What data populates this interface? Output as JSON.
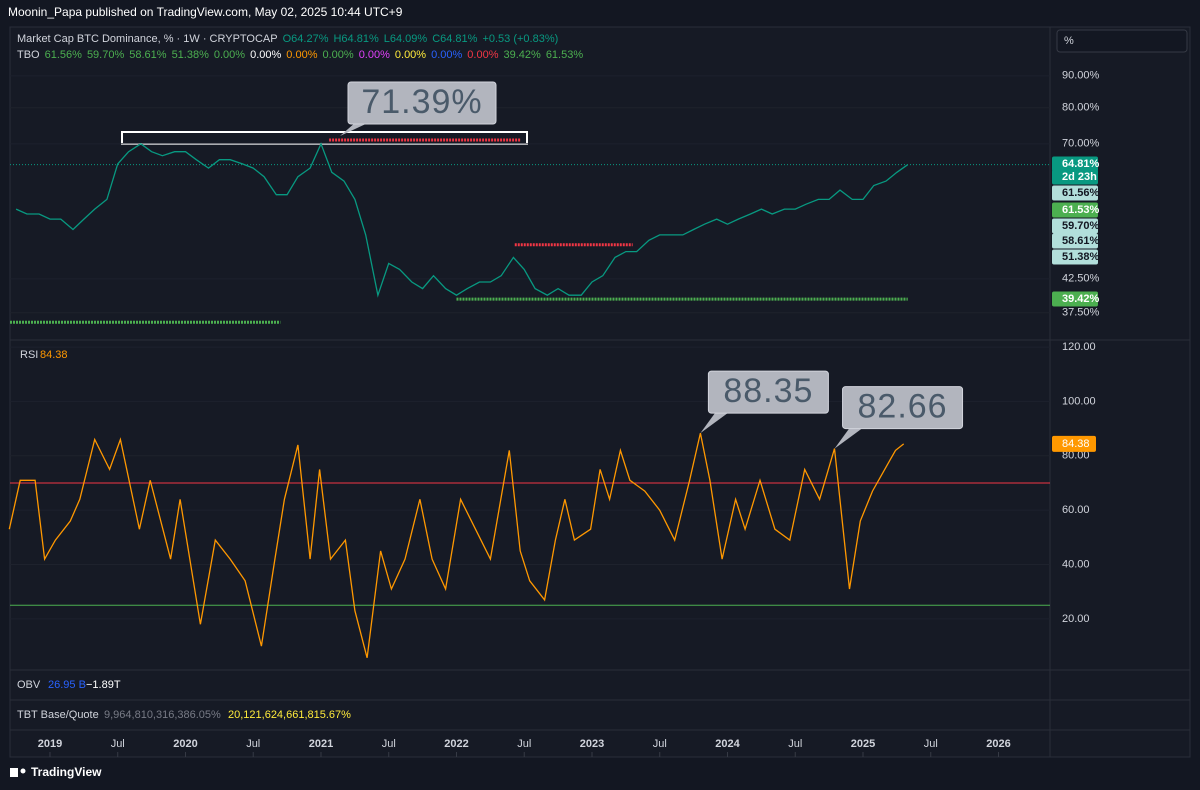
{
  "header": {
    "text": "Moonin_Papa published on TradingView.com, May 02, 2025 10:44 UTC+9"
  },
  "scale_box": "%",
  "chart_data": [
    {
      "type": "line",
      "legend": [
        {
          "text": "Market Cap BTC Dominance, % · 1W · CRYPTOCAP",
          "color": "#d1d4dc"
        },
        {
          "text": "O64.27%",
          "color": "#089981"
        },
        {
          "text": "H64.81%",
          "color": "#089981"
        },
        {
          "text": "L64.09%",
          "color": "#089981"
        },
        {
          "text": "C64.81%",
          "color": "#089981"
        },
        {
          "text": "+0.53 (+0.83%)",
          "color": "#089981"
        }
      ],
      "indicator_legend": {
        "name": "TBO",
        "items": [
          {
            "text": "61.56%",
            "color": "#4caf50"
          },
          {
            "text": "59.70%",
            "color": "#4caf50"
          },
          {
            "text": "58.61%",
            "color": "#4caf50"
          },
          {
            "text": "51.38%",
            "color": "#4caf50"
          },
          {
            "text": "0.00%",
            "color": "#4caf50"
          },
          {
            "text": "0.00%",
            "color": "#ffffff"
          },
          {
            "text": "0.00%",
            "color": "#ff9800"
          },
          {
            "text": "0.00%",
            "color": "#4caf50"
          },
          {
            "text": "0.00%",
            "color": "#e040fb"
          },
          {
            "text": "0.00%",
            "color": "#ffeb3b"
          },
          {
            "text": "0.00%",
            "color": "#2962ff"
          },
          {
            "text": "0.00%",
            "color": "#f23645"
          },
          {
            "text": "39.42%",
            "color": "#4caf50"
          },
          {
            "text": "61.53%",
            "color": "#4caf50"
          }
        ]
      },
      "log_scale": true,
      "xlim": [
        2018.705,
        2026.38
      ],
      "ylim": [
        33.9,
        107.8
      ],
      "yticks": [
        {
          "value": 90,
          "label": "90.00%"
        },
        {
          "value": 80,
          "label": "80.00%"
        },
        {
          "value": 70,
          "label": "70.00%"
        },
        {
          "value": 42.5,
          "label": "42.50%"
        },
        {
          "value": 37.5,
          "label": "37.50%"
        }
      ],
      "series": [
        {
          "color": "#089981",
          "x": [
            2018.75,
            2018.83,
            2018.92,
            2019,
            2019.08,
            2019.17,
            2019.25,
            2019.33,
            2019.42,
            2019.5,
            2019.58,
            2019.67,
            2019.75,
            2019.83,
            2019.92,
            2020,
            2020.08,
            2020.17,
            2020.25,
            2020.33,
            2020.42,
            2020.5,
            2020.58,
            2020.67,
            2020.75,
            2020.83,
            2020.92,
            2021,
            2021.08,
            2021.17,
            2021.25,
            2021.33,
            2021.42,
            2021.5,
            2021.58,
            2021.67,
            2021.75,
            2021.83,
            2021.92,
            2022,
            2022.08,
            2022.17,
            2022.25,
            2022.33,
            2022.42,
            2022.5,
            2022.58,
            2022.67,
            2022.75,
            2022.83,
            2022.92,
            2023,
            2023.08,
            2023.17,
            2023.25,
            2023.33,
            2023.42,
            2023.5,
            2023.58,
            2023.67,
            2023.75,
            2023.83,
            2023.92,
            2024,
            2024.08,
            2024.17,
            2024.25,
            2024.33,
            2024.42,
            2024.5,
            2024.58,
            2024.67,
            2024.75,
            2024.83,
            2024.92,
            2025,
            2025.08,
            2025.17,
            2025.25,
            2025.33
          ],
          "values": [
            55,
            54,
            54,
            53,
            53,
            51,
            53,
            55,
            57,
            65,
            68,
            70,
            68,
            67,
            68,
            68,
            66,
            64,
            66,
            66,
            65,
            64,
            62,
            58,
            58,
            62,
            64,
            70,
            63,
            61,
            57,
            50,
            40,
            45,
            44,
            42,
            41,
            43,
            41,
            40,
            41,
            42,
            42,
            43,
            46,
            44,
            41,
            40,
            41,
            40,
            40,
            42,
            43,
            46,
            47,
            47,
            49,
            50,
            50,
            50,
            51,
            52,
            53,
            52,
            53,
            54,
            55,
            54,
            55,
            55,
            56,
            57,
            57,
            59,
            57,
            57,
            60,
            61,
            63,
            64.81
          ]
        }
      ],
      "levels": [
        {
          "value": 71,
          "from": 2021.06,
          "to": 2022.47,
          "color": "#f23645"
        },
        {
          "value": 48.2,
          "from": 2022.43,
          "to": 2023.3,
          "color": "#f23645"
        },
        {
          "value": 39.42,
          "from": 2022.0,
          "to": 2025.33,
          "color": "#4caf50"
        },
        {
          "value": 36.2,
          "from": 2018.705,
          "to": 2020.7,
          "color": "#4caf50"
        }
      ],
      "price_badges": [
        {
          "label": "64.81%",
          "color": "#089981",
          "text_color": "#ffffff"
        },
        {
          "label": "2d 23h",
          "color": "#089981",
          "text_color": "#ffffff"
        },
        {
          "label": "61.56%",
          "color": "#b2dfdb",
          "text_color": "#131722"
        },
        {
          "label": "61.53%",
          "color": "#4caf50",
          "text_color": "#ffffff"
        },
        {
          "label": "59.70%",
          "color": "#b2dfdb",
          "text_color": "#131722"
        },
        {
          "label": "58.61%",
          "color": "#b2dfdb",
          "text_color": "#131722"
        },
        {
          "label": "51.38%",
          "color": "#b2dfdb",
          "text_color": "#131722"
        },
        {
          "label": "39.42%",
          "color": "#4caf50",
          "text_color": "#ffffff"
        }
      ],
      "annotation": "71.39%"
    },
    {
      "type": "line",
      "title": "RSI",
      "xlim": [
        2018.705,
        2026.38
      ],
      "xticks": [
        {
          "value": 2019,
          "label": "2019"
        },
        {
          "value": 2019.5,
          "label": "Jul"
        },
        {
          "value": 2020,
          "label": "2020"
        },
        {
          "value": 2020.5,
          "label": "Jul"
        },
        {
          "value": 2021,
          "label": "2021"
        },
        {
          "value": 2021.5,
          "label": "Jul"
        },
        {
          "value": 2022,
          "label": "2022"
        },
        {
          "value": 2022.5,
          "label": "Jul"
        },
        {
          "value": 2023,
          "label": "2023"
        },
        {
          "value": 2023.5,
          "label": "Jul"
        },
        {
          "value": 2024,
          "label": "2024"
        },
        {
          "value": 2024.5,
          "label": "Jul"
        },
        {
          "value": 2025,
          "label": "2025"
        },
        {
          "value": 2025.5,
          "label": "Jul"
        },
        {
          "value": 2026,
          "label": "2026"
        }
      ],
      "ylim": [
        1.2,
        122.6
      ],
      "yticks": [
        {
          "value": 120,
          "label": "120.00"
        },
        {
          "value": 100,
          "label": "100.00"
        },
        {
          "value": 80,
          "label": "80.00"
        },
        {
          "value": 60,
          "label": "60.00"
        },
        {
          "value": 40,
          "label": "40.00"
        },
        {
          "value": 20,
          "label": "20.00"
        }
      ],
      "bands": [
        {
          "value": 70,
          "color": "#f23645"
        },
        {
          "value": 25,
          "color": "#4caf50"
        }
      ],
      "series": [
        {
          "color": "#ff9800",
          "x": [
            2018.7,
            2018.78,
            2018.89,
            2018.96,
            2019.04,
            2019.15,
            2019.22,
            2019.33,
            2019.44,
            2019.52,
            2019.66,
            2019.74,
            2019.89,
            2019.96,
            2020.11,
            2020.22,
            2020.33,
            2020.44,
            2020.56,
            2020.66,
            2020.73,
            2020.83,
            2020.92,
            2020.99,
            2021.07,
            2021.18,
            2021.25,
            2021.34,
            2021.44,
            2021.52,
            2021.62,
            2021.73,
            2021.82,
            2021.92,
            2022.03,
            2022.14,
            2022.25,
            2022.39,
            2022.47,
            2022.54,
            2022.65,
            2022.73,
            2022.8,
            2022.87,
            2022.99,
            2023.06,
            2023.13,
            2023.21,
            2023.28,
            2023.39,
            2023.5,
            2023.61,
            2023.72,
            2023.8,
            2023.87,
            2023.96,
            2024.06,
            2024.13,
            2024.24,
            2024.35,
            2024.46,
            2024.57,
            2024.68,
            2024.79,
            2024.9,
            2024.98,
            2025.07,
            2025.16,
            2025.24,
            2025.3
          ],
          "values": [
            53,
            71,
            71,
            42,
            49,
            56,
            64,
            86,
            75,
            86,
            53,
            71,
            42,
            64,
            18,
            49,
            42,
            34,
            10,
            42,
            64,
            84,
            42,
            75,
            42,
            49,
            23,
            5.7,
            45,
            31,
            42,
            64,
            42,
            31,
            64,
            53,
            42,
            82,
            45,
            34,
            27,
            49,
            64,
            49,
            53,
            75,
            64,
            82,
            71,
            67,
            60,
            49,
            71,
            88.35,
            71,
            42,
            64,
            53,
            71,
            53,
            49,
            75,
            64,
            82.66,
            31,
            56,
            67,
            75,
            82,
            84.38
          ]
        }
      ],
      "annotations": [
        "88.35",
        "82.66"
      ]
    }
  ],
  "obv": {
    "name": "OBV",
    "value": "26.95 B",
    "change": "−1.89T"
  },
  "tbt": {
    "name": "TBT Base/Quote",
    "base": "9,964,810,316,386.05%",
    "quote": "20,121,624,661,815.67%"
  },
  "footer": {
    "brand": "TradingView"
  }
}
